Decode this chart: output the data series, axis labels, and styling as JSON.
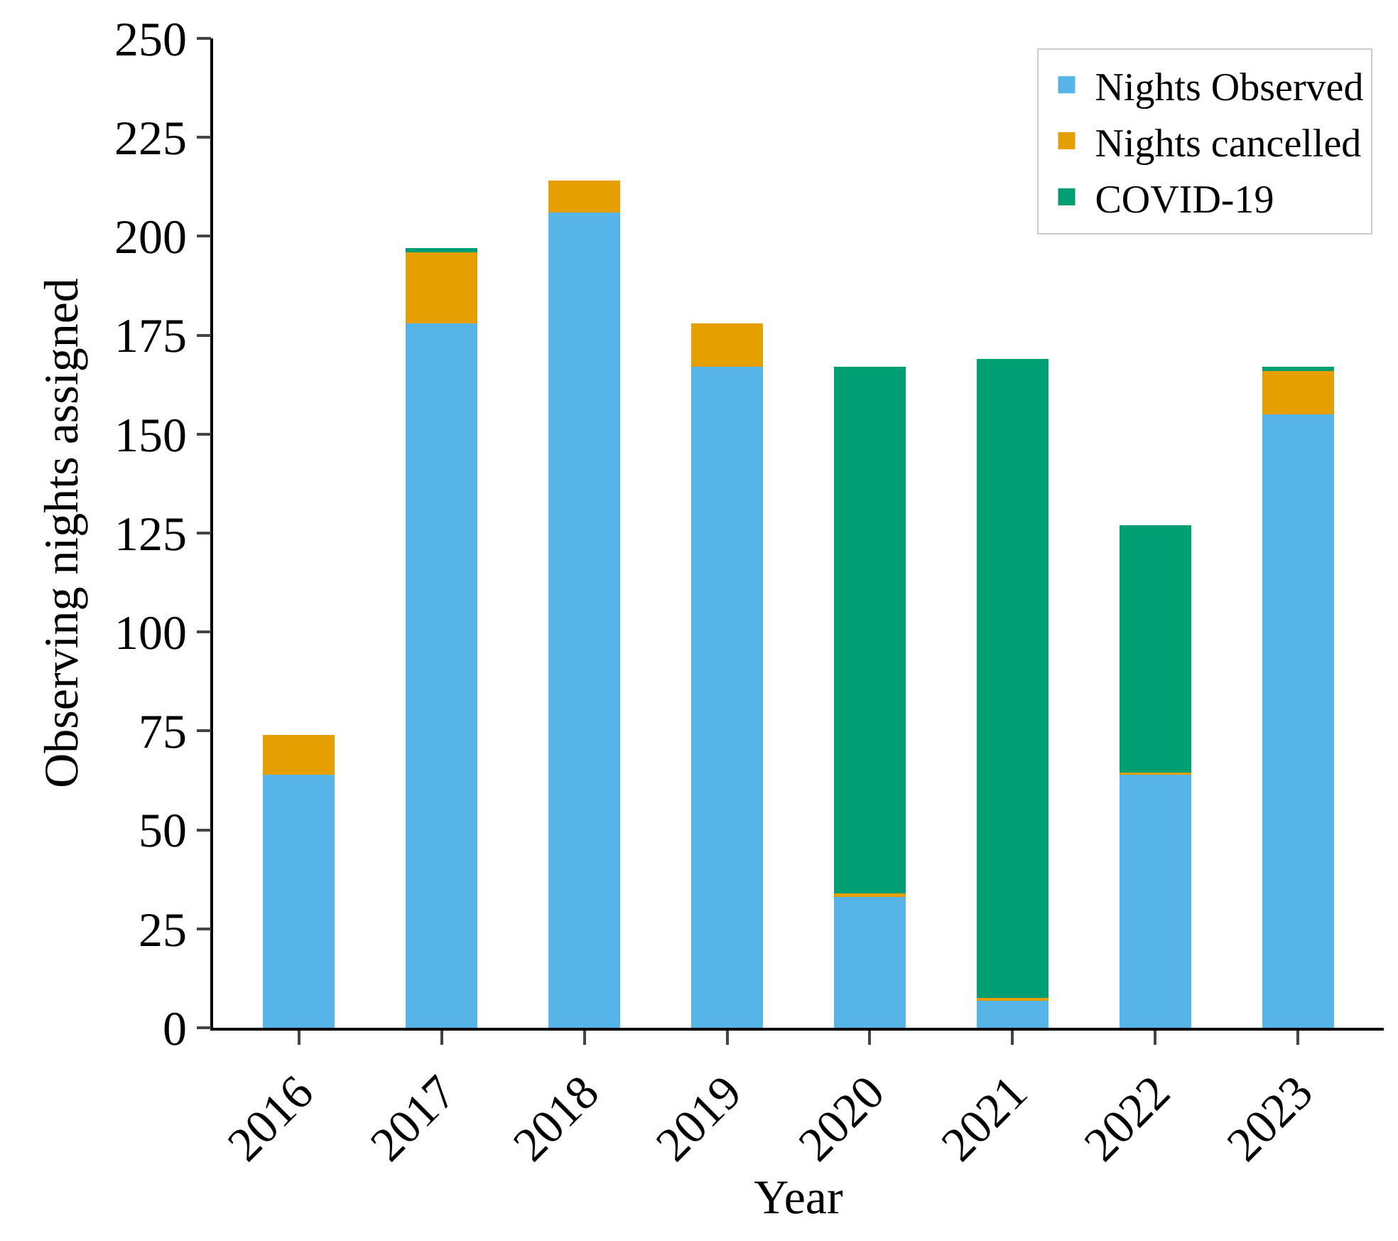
{
  "chart_data": {
    "type": "bar",
    "stacked": true,
    "xlabel": "Year",
    "ylabel": "Observing nights assigned",
    "categories": [
      "2016",
      "2017",
      "2018",
      "2019",
      "2020",
      "2021",
      "2022",
      "2023"
    ],
    "series": [
      {
        "name": "Nights Observed",
        "color": "#56b4e9",
        "values": [
          64,
          178,
          206,
          167,
          33,
          7,
          64,
          155
        ]
      },
      {
        "name": "Nights cancelled",
        "color": "#e69f00",
        "values": [
          10,
          18,
          8,
          11,
          1,
          0.5,
          0.5,
          11
        ]
      },
      {
        "name": "COVID-19",
        "color": "#009e73",
        "values": [
          0,
          1,
          0,
          0,
          133,
          161.5,
          62.5,
          1
        ]
      }
    ],
    "ylim": [
      0,
      250
    ],
    "yticks": [
      0,
      25,
      50,
      75,
      100,
      125,
      150,
      175,
      200,
      225,
      250
    ],
    "legend": "top right"
  }
}
